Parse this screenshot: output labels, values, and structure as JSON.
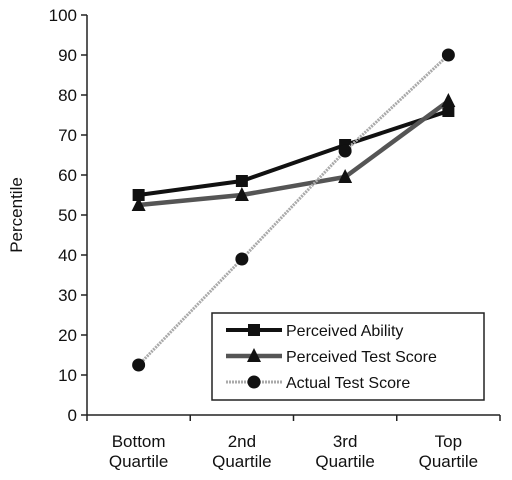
{
  "chart_data": {
    "type": "line",
    "title": "",
    "xlabel": "",
    "ylabel": "Percentile",
    "ylim": [
      0,
      100
    ],
    "yticks": [
      0,
      10,
      20,
      30,
      40,
      50,
      60,
      70,
      80,
      90,
      100
    ],
    "grid": false,
    "legend_position": "bottom-right",
    "categories": [
      [
        "Bottom",
        "Quartile"
      ],
      [
        "2nd",
        "Quartile"
      ],
      [
        "3rd",
        "Quartile"
      ],
      [
        "Top",
        "Quartile"
      ]
    ],
    "series": [
      {
        "name": "Perceived Ability",
        "values": [
          55,
          58.5,
          67.5,
          76
        ],
        "marker": "square",
        "color": "#111111"
      },
      {
        "name": "Perceived Test Score",
        "values": [
          52.5,
          55,
          59.5,
          78.5
        ],
        "marker": "triangle",
        "color": "#555555"
      },
      {
        "name": "Actual Test Score",
        "values": [
          12.5,
          39,
          66,
          90
        ],
        "marker": "circle",
        "color": "#aaaaaa"
      }
    ]
  }
}
